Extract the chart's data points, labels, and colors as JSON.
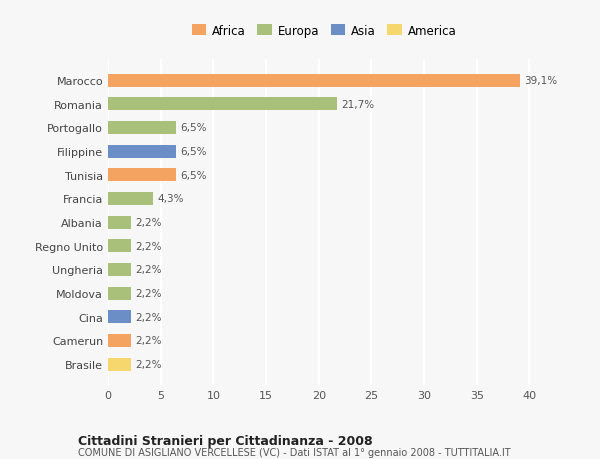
{
  "categories": [
    "Brasile",
    "Camerun",
    "Cina",
    "Moldova",
    "Ungheria",
    "Regno Unito",
    "Albania",
    "Francia",
    "Tunisia",
    "Filippine",
    "Portogallo",
    "Romania",
    "Marocco"
  ],
  "values": [
    2.2,
    2.2,
    2.2,
    2.2,
    2.2,
    2.2,
    2.2,
    4.3,
    6.5,
    6.5,
    6.5,
    21.7,
    39.1
  ],
  "labels": [
    "2,2%",
    "2,2%",
    "2,2%",
    "2,2%",
    "2,2%",
    "2,2%",
    "2,2%",
    "4,3%",
    "6,5%",
    "6,5%",
    "6,5%",
    "21,7%",
    "39,1%"
  ],
  "colors": [
    "#f5d76e",
    "#f4a460",
    "#6b8ec7",
    "#a8c07a",
    "#a8c07a",
    "#a8c07a",
    "#a8c07a",
    "#a8c07a",
    "#f4a460",
    "#6b8ec7",
    "#a8c07a",
    "#a8c07a",
    "#f4a460"
  ],
  "continent_colors": {
    "Africa": "#f4a460",
    "Europa": "#a8c07a",
    "Asia": "#6b8ec7",
    "America": "#f5d76e"
  },
  "title": "Cittadini Stranieri per Cittadinanza - 2008",
  "subtitle": "COMUNE DI ASIGLIANO VERCELLESE (VC) - Dati ISTAT al 1° gennaio 2008 - TUTTITALIA.IT",
  "xlim": [
    0,
    41
  ],
  "xticks": [
    0,
    5,
    10,
    15,
    20,
    25,
    30,
    35,
    40
  ],
  "background_color": "#f7f7f7",
  "grid_color": "#ffffff",
  "bar_height": 0.55
}
